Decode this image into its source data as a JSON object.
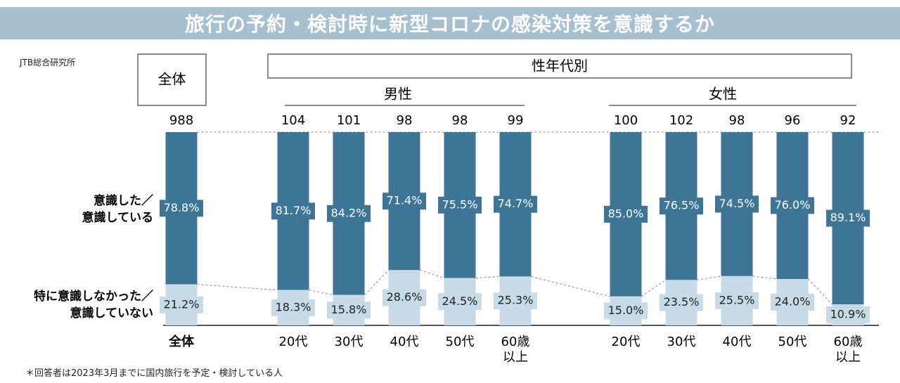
{
  "title": "旅行の予約・検討時に新型コロナの感染対策を意識するか",
  "source": "JTB総合研究所",
  "footnote": "＊回答者は2023年3月までに国内旅行を予定・検討している人",
  "headers": {
    "overall_box": "全体",
    "gender_age_box": "性年代別",
    "male": "男性",
    "female": "女性"
  },
  "row_labels": {
    "aware": [
      "意識した／",
      "意識している"
    ],
    "not_aware": [
      "特に意識しなかった／",
      "意識していない"
    ]
  },
  "colors": {
    "aware": "#3d7596",
    "not_aware": "#c6dbe6",
    "title_bg": "#a7c0cf",
    "connector": "#888888"
  },
  "chart_data": {
    "type": "bar",
    "stacked": true,
    "normalized": true,
    "categories": [
      "全体",
      "20代",
      "30代",
      "40代",
      "50代",
      "60歳以上",
      "20代",
      "30代",
      "40代",
      "50代",
      "60歳以上"
    ],
    "category_display": [
      [
        "全体"
      ],
      [
        "20代"
      ],
      [
        "30代"
      ],
      [
        "40代"
      ],
      [
        "50代"
      ],
      [
        "60歳",
        "以上"
      ],
      [
        "20代"
      ],
      [
        "30代"
      ],
      [
        "40代"
      ],
      [
        "50代"
      ],
      [
        "60歳",
        "以上"
      ]
    ],
    "groups": [
      "全体",
      "男性",
      "男性",
      "男性",
      "男性",
      "男性",
      "女性",
      "女性",
      "女性",
      "女性",
      "女性"
    ],
    "n": [
      988,
      104,
      101,
      98,
      98,
      99,
      100,
      102,
      98,
      96,
      92
    ],
    "series": [
      {
        "name": "意識した／意識している",
        "values": [
          78.8,
          81.7,
          84.2,
          71.4,
          75.5,
          74.7,
          85.0,
          76.5,
          74.5,
          76.0,
          89.1
        ]
      },
      {
        "name": "特に意識しなかった／意識していない",
        "values": [
          21.2,
          18.3,
          15.8,
          28.6,
          24.5,
          25.3,
          15.0,
          23.5,
          25.5,
          24.0,
          10.9
        ]
      }
    ],
    "ylim": [
      0,
      100
    ],
    "value_format": "0.0%"
  }
}
